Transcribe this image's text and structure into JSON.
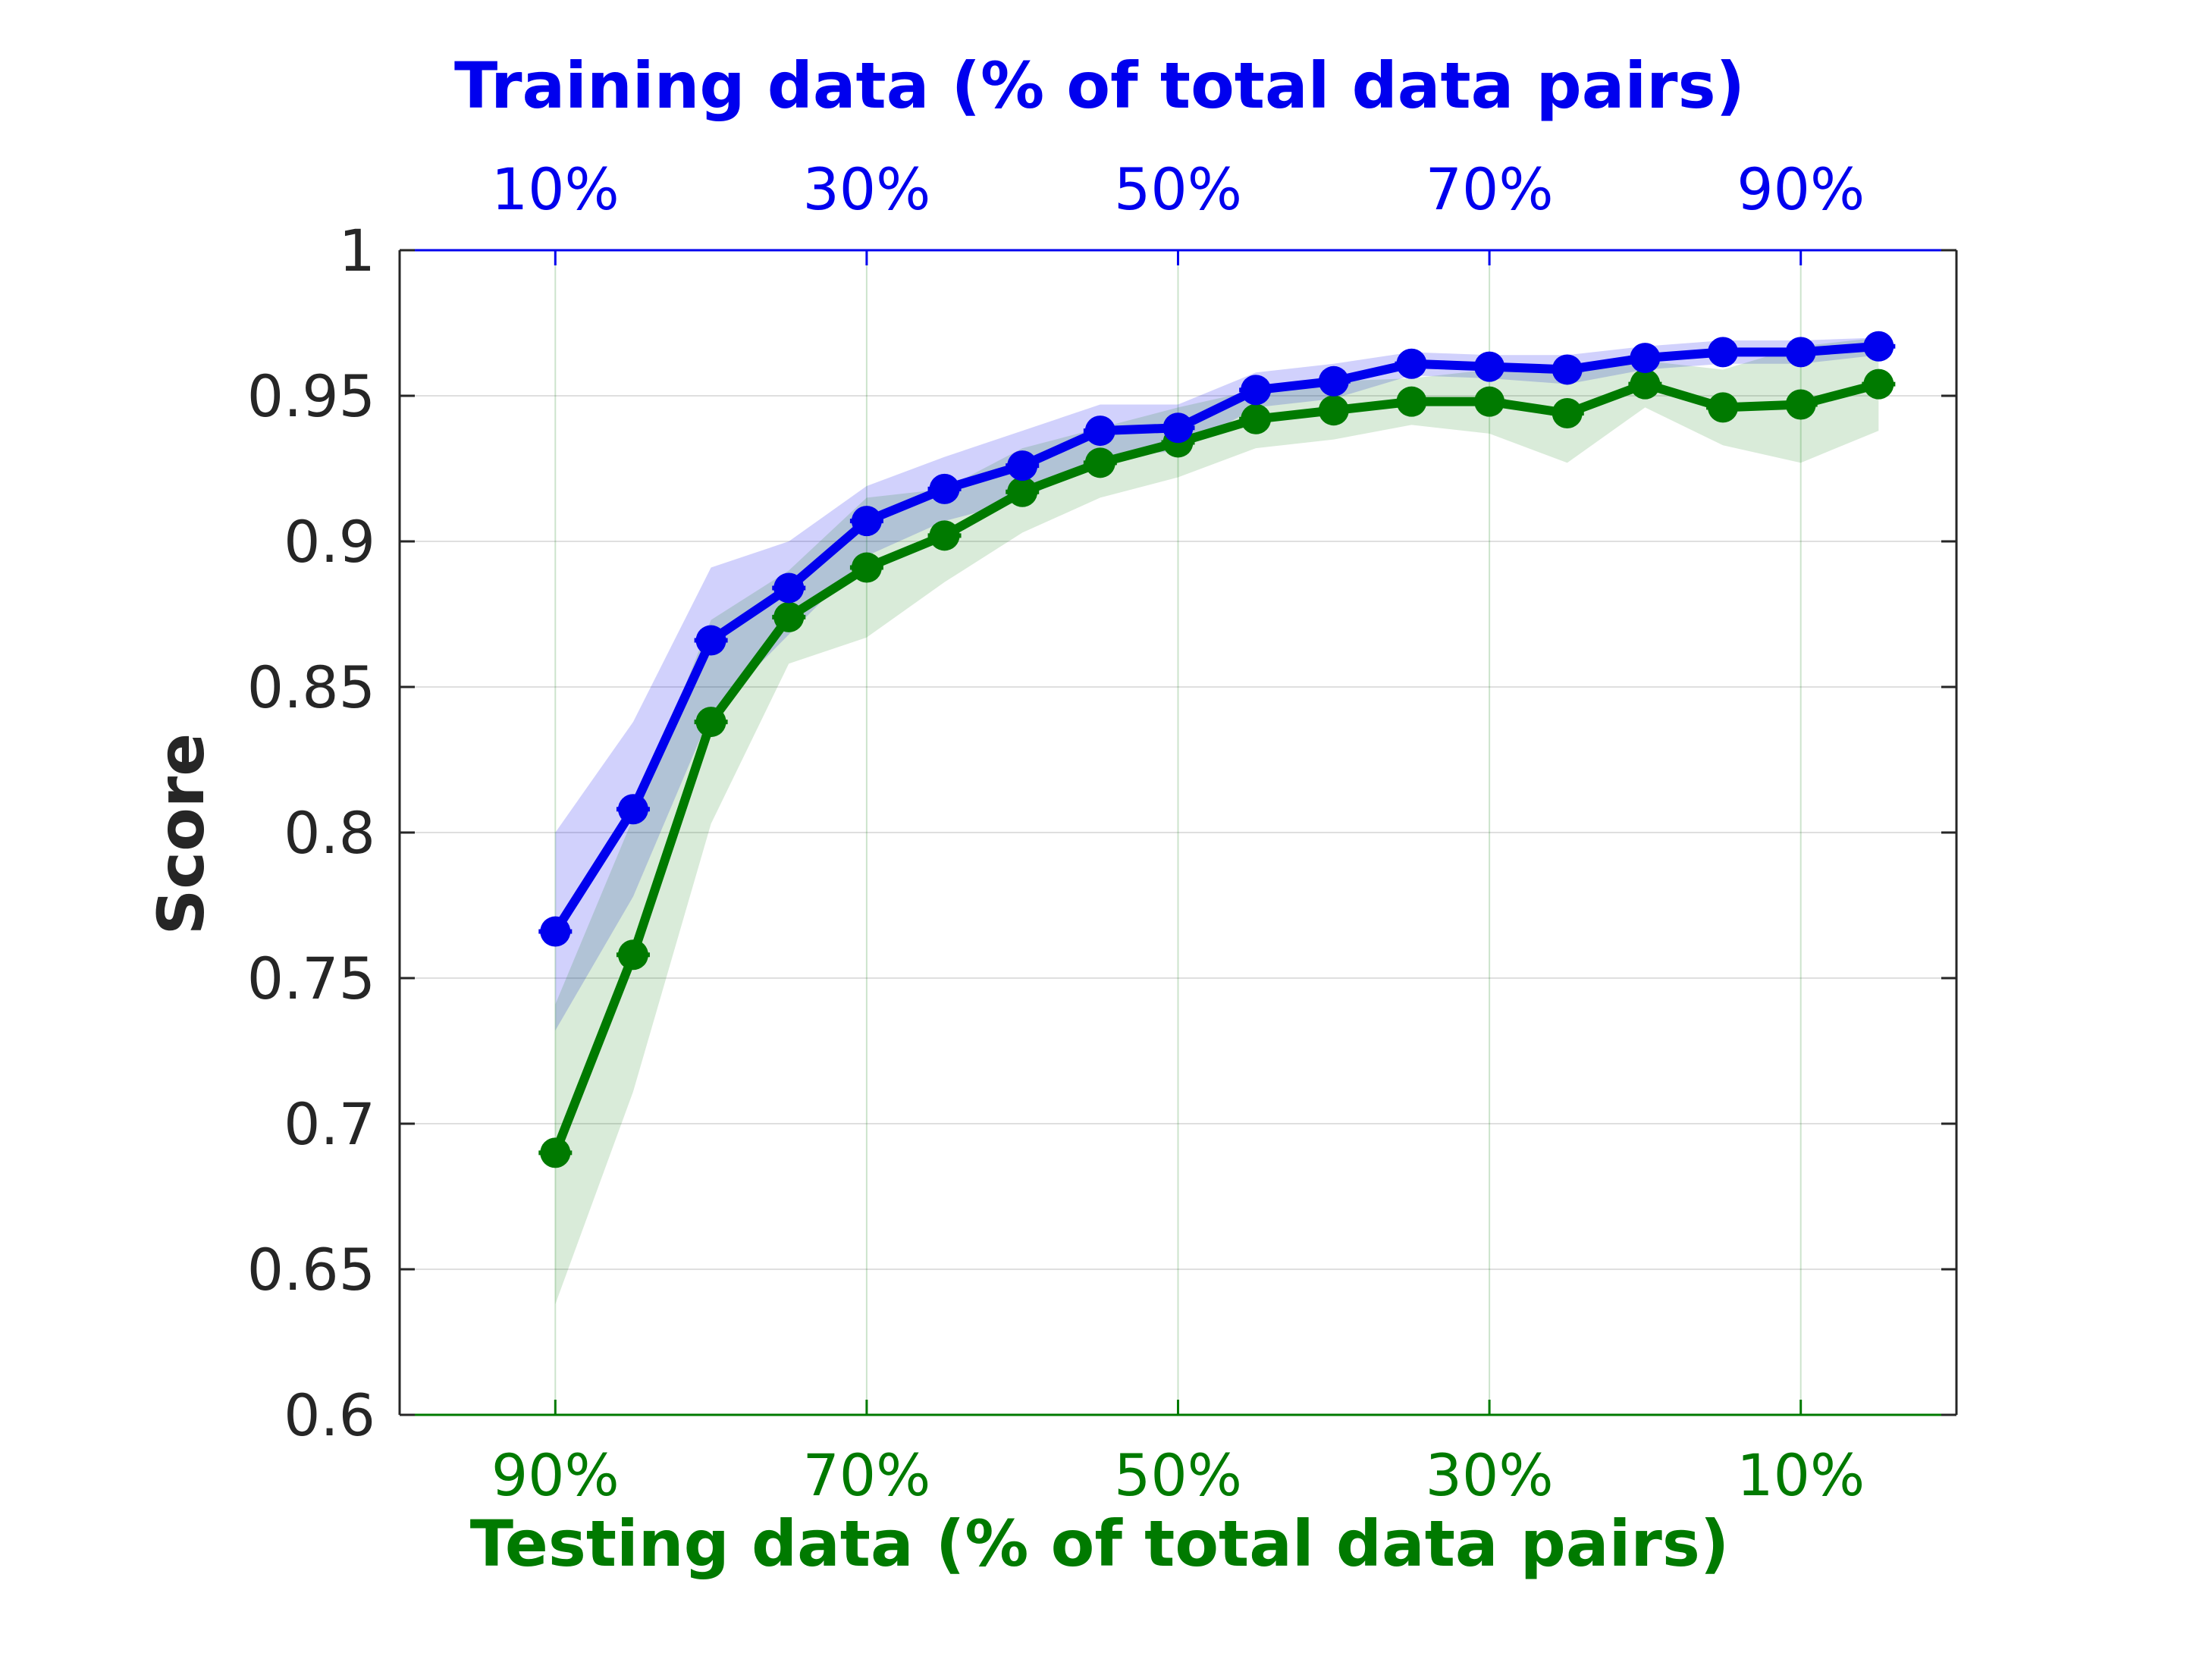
{
  "chart_data": {
    "type": "line",
    "top_axis": {
      "label": "Training data (% of total data pairs)",
      "color": "#0000ee",
      "tick_labels": [
        "10%",
        "30%",
        "50%",
        "70%",
        "90%"
      ]
    },
    "bottom_axis": {
      "label": "Testing data (% of total data pairs)",
      "color": "#007a00",
      "tick_labels": [
        "90%",
        "70%",
        "50%",
        "30%",
        "10%"
      ]
    },
    "y_axis": {
      "label": "Score",
      "ylim": [
        0.6,
        1.0
      ],
      "tick_labels": [
        "0.6",
        "0.65",
        "0.7",
        "0.75",
        "0.8",
        "0.85",
        "0.9",
        "0.95",
        "1"
      ]
    },
    "x_train_pct": [
      10,
      15,
      20,
      25,
      30,
      35,
      40,
      45,
      50,
      55,
      60,
      65,
      70,
      75,
      80,
      85,
      90,
      95
    ],
    "xlim_train_pct": [
      0,
      100
    ],
    "grid": true,
    "series": [
      {
        "color": "#0000ee",
        "values": [
          0.766,
          0.808,
          0.866,
          0.884,
          0.907,
          0.918,
          0.926,
          0.938,
          0.939,
          0.952,
          0.955,
          0.961,
          0.96,
          0.959,
          0.963,
          0.965,
          0.965,
          0.967
        ],
        "band_upper": [
          0.8,
          0.838,
          0.891,
          0.9,
          0.919,
          0.929,
          0.938,
          0.947,
          0.947,
          0.958,
          0.961,
          0.965,
          0.964,
          0.964,
          0.967,
          0.969,
          0.969,
          0.97
        ],
        "band_lower": [
          0.732,
          0.778,
          0.841,
          0.868,
          0.895,
          0.907,
          0.914,
          0.929,
          0.931,
          0.946,
          0.949,
          0.957,
          0.956,
          0.954,
          0.959,
          0.961,
          0.961,
          0.964
        ]
      },
      {
        "color": "#007a00",
        "values": [
          0.69,
          0.758,
          0.838,
          0.874,
          0.891,
          0.902,
          0.917,
          0.927,
          0.934,
          0.942,
          0.945,
          0.948,
          0.948,
          0.944,
          0.954,
          0.946,
          0.947,
          0.954
        ],
        "band_upper": [
          0.741,
          0.805,
          0.873,
          0.89,
          0.915,
          0.918,
          0.932,
          0.939,
          0.946,
          0.952,
          0.955,
          0.956,
          0.959,
          0.961,
          0.962,
          0.959,
          0.967,
          0.97
        ],
        "band_lower": [
          0.638,
          0.711,
          0.803,
          0.858,
          0.867,
          0.886,
          0.903,
          0.915,
          0.922,
          0.932,
          0.935,
          0.94,
          0.937,
          0.927,
          0.946,
          0.933,
          0.927,
          0.938
        ]
      }
    ]
  }
}
